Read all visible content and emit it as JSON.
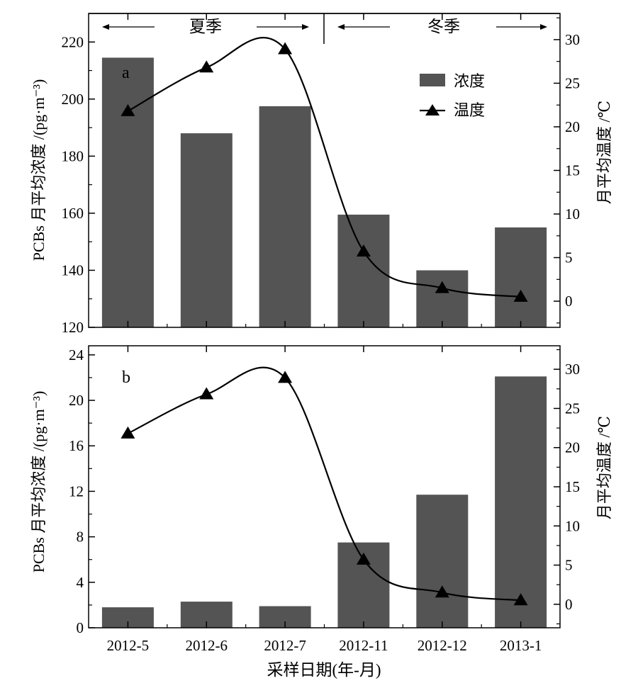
{
  "season_bar": {
    "summer": "夏季",
    "winter": "冬季"
  },
  "xlabel": "采样日期(年-月)",
  "chart_data": [
    {
      "type": "bar",
      "panel_label": "a",
      "categories": [
        "2012-5",
        "2012-6",
        "2012-7",
        "2012-11",
        "2012-12",
        "2013-1"
      ],
      "series": [
        {
          "name": "浓度",
          "axis": "left",
          "type": "bar",
          "values": [
            214.5,
            188,
            197.5,
            159.5,
            140,
            155
          ]
        },
        {
          "name": "温度",
          "axis": "right",
          "type": "line",
          "marker": "triangle",
          "values": [
            21.8,
            26.8,
            28.9,
            5.7,
            1.5,
            0.5
          ]
        }
      ],
      "ylabel_left": "PCBs 月平均浓度 /(pg·m⁻³)",
      "ylabel_right": "月平均温度 /℃",
      "ylim_left": [
        120,
        230
      ],
      "yticks_left": [
        "120",
        "140",
        "160",
        "180",
        "200",
        "220"
      ],
      "ylim_right": [
        -3,
        33
      ],
      "yticks_right": [
        "0",
        "5",
        "10",
        "15",
        "20",
        "25",
        "30"
      ],
      "legend_position": "top-right",
      "bar_color": "#545454"
    },
    {
      "type": "bar",
      "panel_label": "b",
      "categories": [
        "2012-5",
        "2012-6",
        "2012-7",
        "2012-11",
        "2012-12",
        "2013-1"
      ],
      "series": [
        {
          "name": "浓度",
          "axis": "left",
          "type": "bar",
          "values": [
            1.8,
            2.3,
            1.9,
            7.5,
            11.7,
            22.1
          ]
        },
        {
          "name": "温度",
          "axis": "right",
          "type": "line",
          "marker": "triangle",
          "values": [
            21.8,
            26.8,
            28.9,
            5.7,
            1.5,
            0.5
          ]
        }
      ],
      "ylabel_left": "PCBs 月平均浓度 /(pg·m⁻³)",
      "ylabel_right": "月平均温度 /℃",
      "ylim_left": [
        0,
        24.8
      ],
      "yticks_left": [
        "0",
        "4",
        "8",
        "12",
        "16",
        "20",
        "24"
      ],
      "ylim_right": [
        -3,
        33
      ],
      "yticks_right": [
        "0",
        "5",
        "10",
        "15",
        "20",
        "25",
        "30"
      ],
      "bar_color": "#545454"
    }
  ]
}
